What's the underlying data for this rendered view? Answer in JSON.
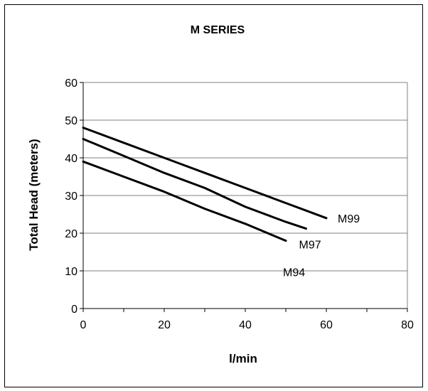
{
  "chart_data": {
    "type": "line",
    "title": "M SERIES",
    "xlabel": "l/min",
    "ylabel": "Total Head (meters)",
    "xlim": [
      0,
      80
    ],
    "ylim": [
      0,
      60
    ],
    "xticks": [
      0,
      20,
      40,
      60,
      80
    ],
    "yticks": [
      0,
      10,
      20,
      30,
      40,
      50,
      60
    ],
    "grid": "horizontal",
    "legend": "none",
    "series": [
      {
        "name": "M99",
        "x": [
          0,
          10,
          20,
          30,
          40,
          50,
          55,
          60
        ],
        "y": [
          48,
          44,
          40,
          36,
          32,
          28,
          26,
          24
        ]
      },
      {
        "name": "M97",
        "x": [
          0,
          10,
          20,
          30,
          40,
          50,
          55
        ],
        "y": [
          45,
          40.5,
          36,
          32,
          27,
          23,
          21.2
        ]
      },
      {
        "name": "M94",
        "x": [
          0,
          10,
          20,
          30,
          40,
          50
        ],
        "y": [
          39,
          35,
          31,
          26.5,
          22.5,
          18
        ]
      }
    ],
    "colors": {
      "line": "#000000",
      "grid": "#808080",
      "frame": "#000000"
    }
  }
}
